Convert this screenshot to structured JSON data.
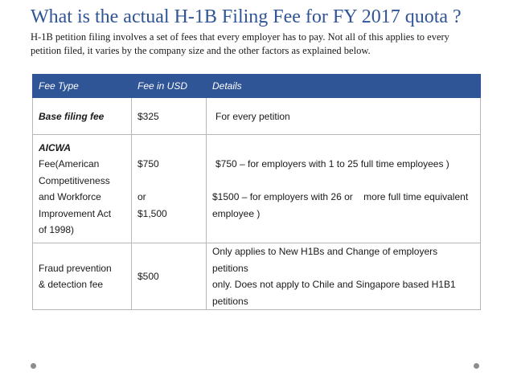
{
  "title": "What is the actual H-1B Filing Fee for FY 2017 quota ?",
  "subtitle": "H-1B petition filing involves a set of fees that every employer has to pay. Not all of this applies to every petition filed, it varies by the company size and the other factors as explained below.",
  "table": {
    "headers": [
      "Fee Type",
      "Fee in USD",
      "Details"
    ],
    "base": {
      "type": "Base filing fee",
      "fee": "$325",
      "details": "For every petition"
    },
    "acwa": {
      "type_heading": "AICWA",
      "type_lines": [
        "Fee(American",
        "Competitiveness",
        "and Workforce",
        "Improvement Act",
        "of 1998)"
      ],
      "fee_1": "$750",
      "fee_or": "or",
      "fee_2": "$1,500",
      "details_1": "$750 – for employers with 1 to 25 full time employees )",
      "details_2": "$1500 – for employers with 26 or    more full time equivalent",
      "details_3": "employee )"
    },
    "fraud": {
      "type_lines": [
        "Fraud prevention",
        "& detection fee"
      ],
      "fee": "$500",
      "details_lines": [
        "Only applies to New H1Bs and Change of employers petitions",
        "only. Does not apply to Chile and Singapore based H1B1",
        "petitions"
      ]
    }
  }
}
